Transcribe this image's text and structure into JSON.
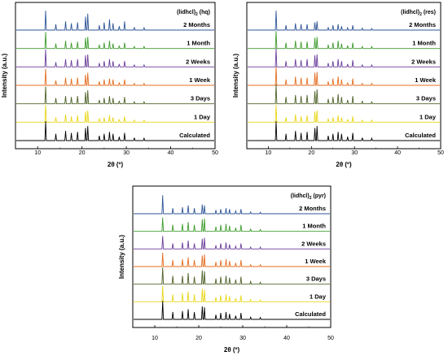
{
  "chart_data": [
    {
      "type": "line",
      "title": "(lidhcl)",
      "title_subscript": "2",
      "title_suffix": "(hq)",
      "xlabel": "2θ (º)",
      "ylabel": "Intensity (a.u.)",
      "xlim": [
        5,
        50
      ],
      "x_ticks": [
        "10",
        "20",
        "30",
        "40",
        "50"
      ],
      "peaks_2theta": [
        11.8,
        14.1,
        16.3,
        17.6,
        19.0,
        20.8,
        21.3,
        23.9,
        25.0,
        26.2,
        27.0,
        28.4,
        29.6,
        31.8,
        34.0
      ],
      "series": [
        {
          "name": "2 Months",
          "color": "#2f5597",
          "intensities": [
            1.0,
            0.3,
            0.45,
            0.35,
            0.4,
            0.7,
            0.85,
            0.25,
            0.4,
            0.55,
            0.35,
            0.2,
            0.45,
            0.15,
            0.12
          ]
        },
        {
          "name": "1 Month",
          "color": "#3d9b2c",
          "intensities": [
            0.85,
            0.25,
            0.4,
            0.3,
            0.35,
            0.55,
            0.6,
            0.2,
            0.3,
            0.4,
            0.25,
            0.15,
            0.3,
            0.1,
            0.1
          ]
        },
        {
          "name": "2 Weeks",
          "color": "#6a3d9a",
          "intensities": [
            0.9,
            0.25,
            0.4,
            0.35,
            0.4,
            0.6,
            0.65,
            0.2,
            0.3,
            0.4,
            0.3,
            0.15,
            0.3,
            0.1,
            0.1
          ]
        },
        {
          "name": "1 Week",
          "color": "#e46d1f",
          "intensities": [
            0.85,
            0.25,
            0.4,
            0.35,
            0.4,
            0.55,
            0.65,
            0.2,
            0.3,
            0.35,
            0.3,
            0.15,
            0.3,
            0.1,
            0.1
          ]
        },
        {
          "name": "3 Days",
          "color": "#4f6228",
          "intensities": [
            0.9,
            0.3,
            0.4,
            0.35,
            0.4,
            0.6,
            0.7,
            0.2,
            0.3,
            0.4,
            0.3,
            0.15,
            0.35,
            0.1,
            0.1
          ]
        },
        {
          "name": "1 Day",
          "color": "#e8d619",
          "intensities": [
            0.9,
            0.25,
            0.4,
            0.3,
            0.35,
            0.55,
            0.6,
            0.2,
            0.25,
            0.35,
            0.25,
            0.15,
            0.3,
            0.1,
            0.1
          ]
        },
        {
          "name": "Calculated",
          "color": "#000000",
          "intensities": [
            1.0,
            0.35,
            0.5,
            0.4,
            0.45,
            0.65,
            0.75,
            0.25,
            0.35,
            0.45,
            0.35,
            0.2,
            0.4,
            0.15,
            0.12
          ]
        }
      ]
    },
    {
      "type": "line",
      "title": "(lidhcl)",
      "title_subscript": "2",
      "title_suffix": "(res)",
      "xlabel": "2θ (º)",
      "ylabel": "Intensity (a.u.)",
      "xlim": [
        5,
        50
      ],
      "x_ticks": [
        "10",
        "20",
        "30",
        "40",
        "50"
      ],
      "peaks_2theta": [
        11.8,
        14.1,
        16.3,
        17.6,
        19.0,
        20.8,
        21.3,
        23.9,
        25.0,
        26.2,
        27.0,
        28.4,
        29.6,
        31.8,
        34.0
      ],
      "series": [
        {
          "name": "2 Months",
          "color": "#2f5597",
          "intensities": [
            1.0,
            0.25,
            0.35,
            0.3,
            0.3,
            0.4,
            0.45,
            0.15,
            0.25,
            0.3,
            0.2,
            0.12,
            0.25,
            0.1,
            0.08
          ]
        },
        {
          "name": "1 Month",
          "color": "#3d9b2c",
          "intensities": [
            0.9,
            0.3,
            0.4,
            0.35,
            0.35,
            0.55,
            0.6,
            0.2,
            0.3,
            0.4,
            0.25,
            0.15,
            0.3,
            0.1,
            0.1
          ]
        },
        {
          "name": "2 Weeks",
          "color": "#6a3d9a",
          "intensities": [
            0.95,
            0.3,
            0.4,
            0.35,
            0.4,
            0.6,
            0.65,
            0.2,
            0.3,
            0.4,
            0.3,
            0.15,
            0.35,
            0.1,
            0.1
          ]
        },
        {
          "name": "1 Week",
          "color": "#e46d1f",
          "intensities": [
            0.95,
            0.3,
            0.45,
            0.4,
            0.4,
            0.65,
            0.7,
            0.2,
            0.35,
            0.45,
            0.3,
            0.15,
            0.35,
            0.1,
            0.1
          ]
        },
        {
          "name": "3 Days",
          "color": "#4f6228",
          "intensities": [
            1.0,
            0.35,
            0.45,
            0.4,
            0.45,
            0.65,
            0.75,
            0.25,
            0.35,
            0.5,
            0.35,
            0.2,
            0.4,
            0.15,
            0.1
          ]
        },
        {
          "name": "1 Day",
          "color": "#e8d619",
          "intensities": [
            0.9,
            0.25,
            0.4,
            0.3,
            0.35,
            0.55,
            0.6,
            0.2,
            0.25,
            0.35,
            0.25,
            0.15,
            0.3,
            0.1,
            0.1
          ]
        },
        {
          "name": "Calculated",
          "color": "#000000",
          "intensities": [
            1.0,
            0.35,
            0.5,
            0.4,
            0.45,
            0.65,
            0.75,
            0.25,
            0.35,
            0.45,
            0.35,
            0.2,
            0.4,
            0.15,
            0.12
          ]
        }
      ]
    },
    {
      "type": "line",
      "title": "(lidhcl)",
      "title_subscript": "2",
      "title_suffix": "(pyr)",
      "xlabel": "2θ (º)",
      "ylabel": "Intensity (a.u.)",
      "xlim": [
        5,
        50
      ],
      "x_ticks": [
        "10",
        "20",
        "30",
        "40",
        "50"
      ],
      "peaks_2theta": [
        11.8,
        14.1,
        16.3,
        17.6,
        19.0,
        20.8,
        21.3,
        23.9,
        25.0,
        26.2,
        27.0,
        28.4,
        29.6,
        31.8,
        34.0
      ],
      "series": [
        {
          "name": "2 Months",
          "color": "#2f5597",
          "intensities": [
            1.0,
            0.3,
            0.35,
            0.45,
            0.3,
            0.5,
            0.45,
            0.2,
            0.25,
            0.3,
            0.25,
            0.15,
            0.25,
            0.1,
            0.08
          ]
        },
        {
          "name": "1 Month",
          "color": "#3d9b2c",
          "intensities": [
            0.75,
            0.35,
            0.4,
            0.5,
            0.35,
            0.65,
            0.7,
            0.25,
            0.35,
            0.4,
            0.3,
            0.2,
            0.35,
            0.12,
            0.1
          ]
        },
        {
          "name": "2 Weeks",
          "color": "#6a3d9a",
          "intensities": [
            0.7,
            0.3,
            0.35,
            0.45,
            0.3,
            0.55,
            0.6,
            0.2,
            0.3,
            0.35,
            0.25,
            0.15,
            0.3,
            0.1,
            0.1
          ]
        },
        {
          "name": "1 Week",
          "color": "#e46d1f",
          "intensities": [
            0.75,
            0.35,
            0.4,
            0.5,
            0.35,
            0.6,
            0.65,
            0.25,
            0.35,
            0.4,
            0.3,
            0.2,
            0.35,
            0.1,
            0.1
          ]
        },
        {
          "name": "3 Days",
          "color": "#4f6228",
          "intensities": [
            0.9,
            0.45,
            0.45,
            0.6,
            0.4,
            0.75,
            0.7,
            0.3,
            0.4,
            0.45,
            0.35,
            0.25,
            0.4,
            0.15,
            0.1
          ]
        },
        {
          "name": "1 Day",
          "color": "#e8d619",
          "intensities": [
            0.85,
            0.4,
            0.45,
            0.55,
            0.4,
            0.7,
            0.65,
            0.25,
            0.35,
            0.4,
            0.3,
            0.2,
            0.35,
            0.12,
            0.1
          ]
        },
        {
          "name": "Calculated",
          "color": "#000000",
          "intensities": [
            1.0,
            0.4,
            0.45,
            0.55,
            0.4,
            0.7,
            0.65,
            0.25,
            0.35,
            0.4,
            0.3,
            0.2,
            0.35,
            0.12,
            0.1
          ]
        }
      ]
    }
  ]
}
